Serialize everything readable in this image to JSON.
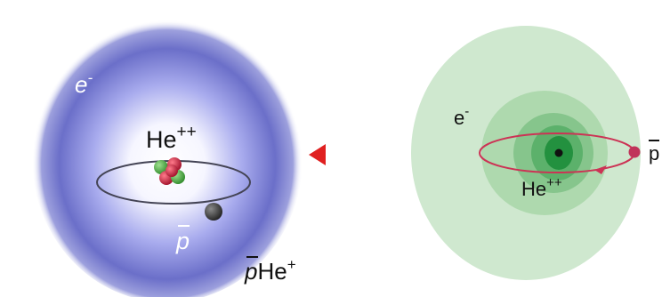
{
  "left_panel": {
    "electron_label": "e",
    "electron_sup": "-",
    "nucleus_label": "He",
    "nucleus_sup": "++",
    "antiproton_label": "p",
    "atom_label_p": "p",
    "atom_label_he": "He",
    "atom_label_sup": "+"
  },
  "right_panel": {
    "electron_label": "e",
    "electron_sup": "-",
    "nucleus_label": "He",
    "nucleus_sup": "++",
    "antiproton_label": "p"
  },
  "colors": {
    "electron_cloud_left": "#6b6fc9",
    "orbit_right": "#cc3355",
    "antiproton_dot": "#c0335a",
    "arrow": "#e02020",
    "green_outer": "#cfe8cf",
    "green_mid": "#9ed39e",
    "green_inner": "#56b06a",
    "green_core": "#1f8a3c"
  }
}
